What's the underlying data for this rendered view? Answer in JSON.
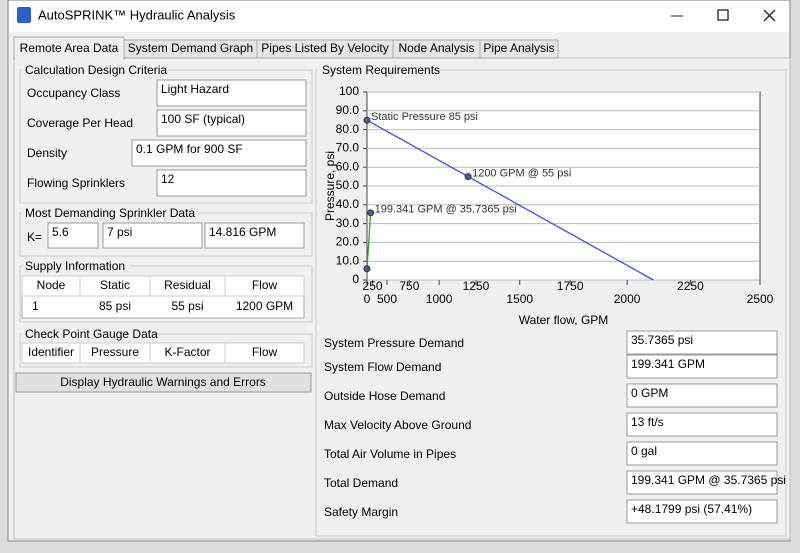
{
  "window": {
    "title": "AutoSPRINK™ Hydraulic Analysis"
  },
  "tabs": [
    "Remote Area Data",
    "System Demand Graph",
    "Pipes Listed By Velocity",
    "Node Analysis",
    "Pipe Analysis"
  ],
  "design_criteria": {
    "title": "Calculation Design Criteria",
    "fields": [
      {
        "label": "Occupancy Class",
        "value": "Light Hazard"
      },
      {
        "label": "Coverage Per Head",
        "value": "100 SF (typical)"
      },
      {
        "label": "Density",
        "value": "0.1 GPM for 900 SF"
      },
      {
        "label": "Flowing Sprinklers",
        "value": "12"
      }
    ]
  },
  "sprinkler_data": {
    "title": "Most Demanding Sprinkler Data",
    "k_label": "K=",
    "values": [
      "5.6",
      "7 psi",
      "14.816 GPM"
    ]
  },
  "supply": {
    "title": "Supply Information",
    "columns": [
      "Node",
      "Static",
      "Residual",
      "Flow"
    ],
    "rows": [
      [
        "1",
        "85 psi",
        "55 psi",
        "1200 GPM"
      ]
    ]
  },
  "gauge": {
    "title": "Check Point Gauge Data",
    "columns": [
      "Identifier",
      "Pressure",
      "K-Factor",
      "Flow"
    ]
  },
  "warnings_button": "Display Hydraulic Warnings and Errors",
  "requirements": {
    "title": "System Requirements",
    "fields": [
      {
        "label": "System Pressure Demand",
        "value": "35.7365 psi"
      },
      {
        "label": "System Flow Demand",
        "value": "199.341 GPM"
      },
      {
        "label": "Outside Hose Demand",
        "value": "0 GPM"
      },
      {
        "label": "Max Velocity Above Ground",
        "value": "13 ft/s"
      },
      {
        "label": "Total Air Volume in Pipes",
        "value": "0 gal"
      },
      {
        "label": "Total Demand",
        "value": "199.341 GPM @ 35.7365 psi"
      },
      {
        "label": "Safety Margin",
        "value": "+48.1799 psi (57.41%)"
      }
    ]
  },
  "chart_data": {
    "type": "line",
    "xlabel": "Water flow, GPM",
    "ylabel": "Pressure, psi",
    "xlim": [
      0,
      2500
    ],
    "xscale_exponent": 1.85,
    "xticks": [
      0,
      250,
      500,
      750,
      1000,
      1250,
      1500,
      1750,
      2000,
      2250,
      2500
    ],
    "ylim": [
      0,
      100
    ],
    "yticks": [
      0,
      {
        "value": 10,
        "label": "10.0"
      },
      {
        "value": 20,
        "label": "20.0"
      },
      {
        "value": 30,
        "label": "30.0"
      },
      {
        "value": 40,
        "label": "40.0"
      },
      {
        "value": 50,
        "label": "50.0"
      },
      {
        "value": 60,
        "label": "60.0"
      },
      {
        "value": 70,
        "label": "70.0"
      },
      {
        "value": 80,
        "label": "80.0"
      },
      {
        "value": 90,
        "label": "90.0"
      },
      100
    ],
    "grid": true,
    "marker_color": "#5a5a8c",
    "series": [
      {
        "color": "#4a4ae0",
        "x": [
          0,
          1200,
          2107
        ],
        "values": [
          85,
          55,
          0
        ],
        "point_labels": [
          "Static Pressure 85 psi",
          "1200 GPM @ 55 psi",
          null
        ]
      },
      {
        "color": "#3a9a3a",
        "x": [
          0,
          199.341
        ],
        "values": [
          6,
          35.7365
        ],
        "point_labels": [
          null,
          "199.341 GPM @ 35.7365 psi"
        ]
      }
    ]
  }
}
